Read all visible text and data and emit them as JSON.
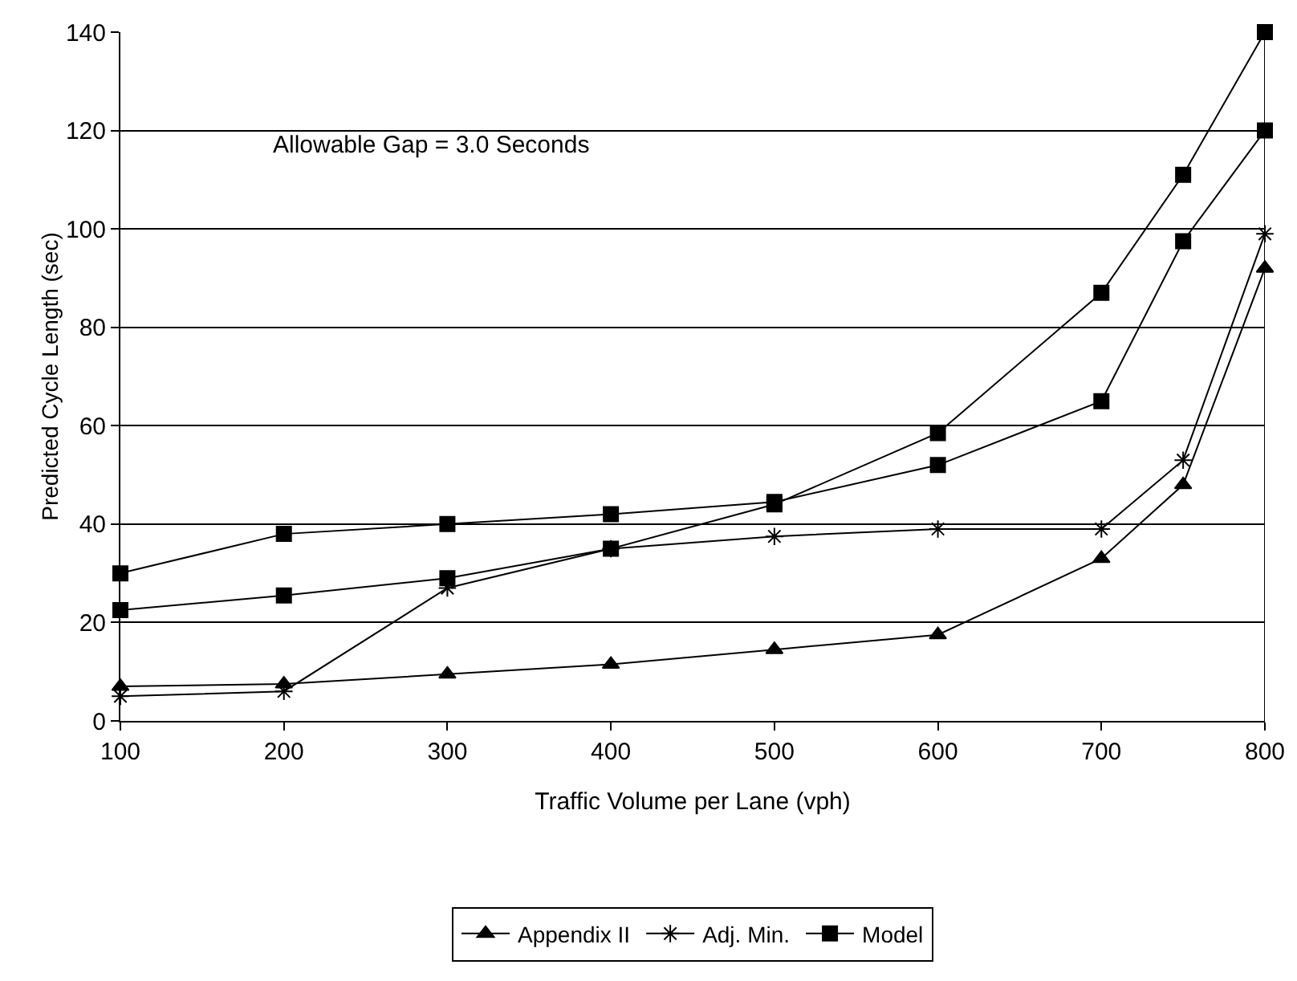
{
  "chart_data": {
    "type": "line",
    "xlabel": "Traffic Volume per Lane (vph)",
    "ylabel": "Predicted Cycle Length (sec)",
    "annotations": [
      "Allowable Gap = 3.0 Seconds"
    ],
    "x": [
      100,
      200,
      300,
      400,
      500,
      600,
      700,
      750,
      800
    ],
    "series": [
      {
        "name": "Appendix II",
        "color": "#000000",
        "marker": "triangle",
        "values": [
          7,
          7.5,
          9.5,
          11.5,
          14.5,
          17.5,
          33,
          48,
          92
        ]
      },
      {
        "name": "Adj. Min.",
        "color": "#000000",
        "marker": "cross",
        "values": [
          5,
          6,
          27,
          35,
          37.5,
          39,
          39,
          53,
          99
        ]
      },
      {
        "name": "Model",
        "color": "#000000",
        "marker": "square",
        "values": [
          22.5,
          25.5,
          29,
          35,
          44,
          58.5,
          87,
          111,
          140
        ]
      },
      {
        "color": "#000000",
        "marker": "square",
        "values": [
          30,
          38,
          40,
          42,
          44.5,
          52,
          65,
          97.5,
          120
        ]
      }
    ],
    "xlim": [
      100,
      800
    ],
    "xticks": [
      100,
      200,
      300,
      400,
      500,
      600,
      700,
      800
    ],
    "ylim": [
      0,
      140
    ],
    "yticks": [
      0,
      20,
      40,
      60,
      80,
      100,
      120,
      140
    ],
    "grid": "y",
    "legend": "bottom",
    "line_style": "solid"
  }
}
